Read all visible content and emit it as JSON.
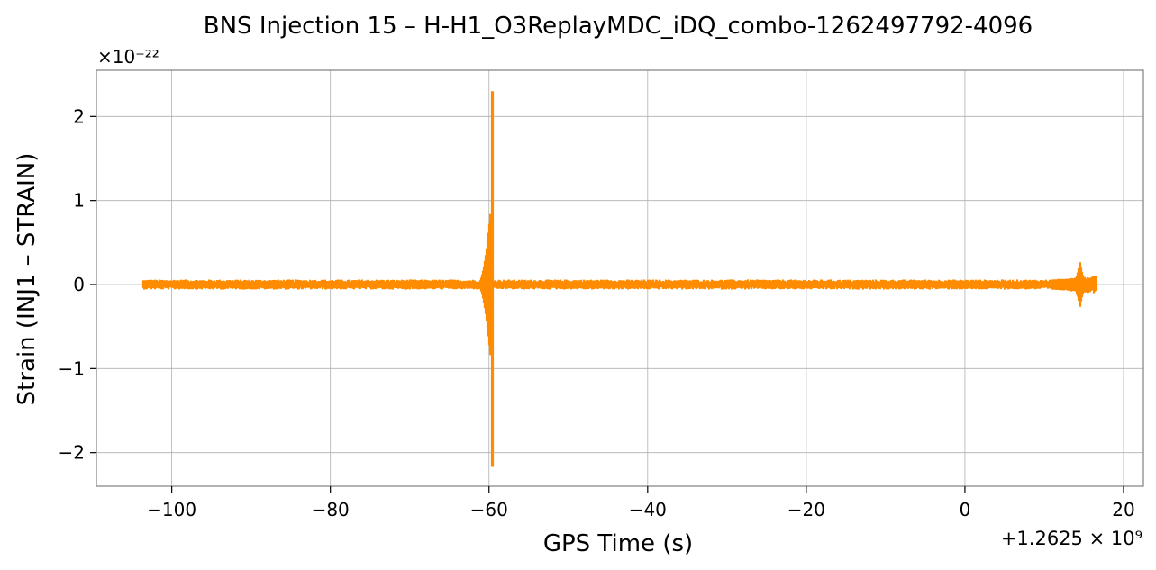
{
  "chart_data": {
    "type": "line",
    "title": "BNS Injection 15 – H-H1_O3ReplayMDC_iDQ_combo-1262497792-4096",
    "xlabel": "GPS Time (s)",
    "ylabel": "Strain (INJ1 – STRAIN)",
    "x_offset_label": "+1.2625 × 10⁹",
    "y_multiplier_label": "×10⁻²²",
    "xlim": [
      -109.5,
      22.5
    ],
    "ylim": [
      -2.4,
      2.55
    ],
    "x_ticks": [
      -100,
      -80,
      -60,
      -40,
      -20,
      0,
      20
    ],
    "x_tick_labels": [
      "−100",
      "−80",
      "−60",
      "−40",
      "−20",
      "0",
      "20"
    ],
    "y_ticks": [
      -2,
      -1,
      0,
      1,
      2
    ],
    "y_tick_labels": [
      "−2",
      "−1",
      "0",
      "1",
      "2"
    ],
    "grid": true,
    "series": [
      {
        "color": "#ff8c00",
        "x_range": [
          -103.5,
          16.5
        ],
        "baseline_noise_amplitude": 0.06,
        "features": [
          {
            "x": -59.6,
            "value_max": 2.3,
            "value_min": -2.17
          },
          {
            "x": -60.0,
            "value_max": 0.9,
            "value_min": -0.9
          },
          {
            "x": 14.5,
            "value_max": 0.3,
            "value_min": -0.3
          }
        ]
      }
    ]
  }
}
